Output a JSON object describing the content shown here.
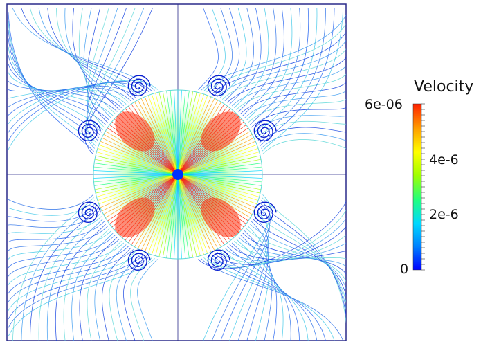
{
  "legend": {
    "title": "Velocity",
    "ticks": {
      "max": "6e-06",
      "t4": "4e-6",
      "t2": "2e-6",
      "zero": "0"
    }
  },
  "colormap": [
    "#0000ff",
    "#0080ff",
    "#00d8ff",
    "#20ff80",
    "#a0ff00",
    "#ffff00",
    "#ffa000",
    "#ff2000"
  ],
  "background": "#ffffff"
}
